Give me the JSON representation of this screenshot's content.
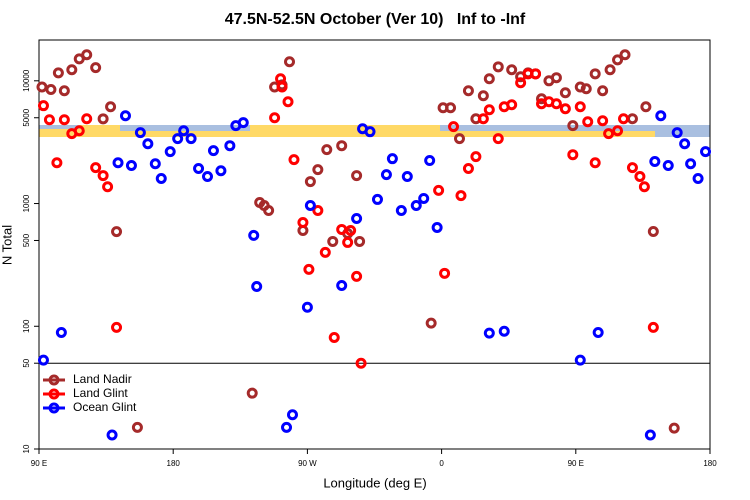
{
  "chart_data": {
    "type": "scatter",
    "title": "47.5N-52.5N October (Ver 10)   Inf to -Inf",
    "xlabel": "Longitude (deg E)",
    "ylabel": "N Total",
    "log_y": true,
    "legend": "bottomleft",
    "hline": 50,
    "xlim": [
      90,
      540
    ],
    "ylim": [
      10,
      21500
    ],
    "xticks": [
      {
        "value": 90,
        "label": "90 E"
      },
      180,
      {
        "value": 270,
        "label": "90 W"
      },
      {
        "value": 360,
        "label": "0"
      },
      {
        "value": 450,
        "label": "90 E"
      },
      {
        "value": 540,
        "label": "180"
      }
    ],
    "yticks": [
      10,
      50,
      100,
      500,
      1000,
      5000,
      10000
    ],
    "series": [
      {
        "name": "Land Nadir",
        "color": "#a52a2a",
        "x": [
          92,
          98,
          103,
          107,
          112,
          117,
          122,
          128,
          133,
          138,
          142,
          156,
          233,
          238,
          241,
          244,
          248,
          253,
          258,
          267,
          272,
          277,
          283,
          287,
          293,
          297,
          303,
          305,
          353,
          361,
          366,
          372,
          378,
          383,
          388,
          392,
          398,
          407,
          413,
          418,
          423,
          427,
          432,
          437,
          443,
          448,
          453,
          457,
          463,
          468,
          473,
          478,
          483,
          488,
          497,
          502,
          516
        ],
        "values": [
          8900,
          8500,
          11600,
          8300,
          12300,
          15100,
          16300,
          12800,
          4900,
          6150,
          590,
          15,
          28.5,
          1020,
          963,
          877,
          8900,
          9270,
          14300,
          603,
          1510,
          1890,
          2750,
          491,
          2960,
          570,
          1690,
          491,
          106,
          6030,
          6030,
          3380,
          8300,
          4910,
          7550,
          10400,
          13000,
          12300,
          10800,
          11600,
          11400,
          7140,
          10000,
          10600,
          7990,
          4310,
          8900,
          8610,
          11400,
          8300,
          12300,
          14800,
          16300,
          4910,
          6150,
          592,
          14.8
        ]
      },
      {
        "name": "Land Glint",
        "color": "#ff0000",
        "x": [
          93,
          97,
          102,
          107,
          112,
          117,
          122,
          128,
          133,
          136,
          142,
          248,
          252,
          253,
          257,
          261,
          267,
          271,
          277,
          282,
          288,
          293,
          297,
          299,
          303,
          306,
          358,
          362,
          368,
          373,
          378,
          383,
          388,
          392,
          398,
          402,
          407,
          413,
          418,
          423,
          427,
          432,
          437,
          443,
          448,
          453,
          458,
          463,
          468,
          472,
          478,
          482,
          488,
          493,
          496,
          502
        ],
        "values": [
          6270,
          4820,
          2150,
          4820,
          3710,
          3920,
          4910,
          1960,
          1690,
          1370,
          98,
          5000,
          10400,
          8900,
          6750,
          2280,
          701,
          291,
          877,
          400,
          81,
          615,
          482,
          603,
          255,
          50,
          1280,
          270,
          4230,
          1160,
          1930,
          2410,
          4910,
          5810,
          3380,
          6150,
          6380,
          9640,
          11400,
          11400,
          6500,
          6750,
          6500,
          5920,
          2500,
          6150,
          4640,
          2150,
          4730,
          3710,
          3920,
          4910,
          1960,
          1660,
          1370,
          98
        ]
      },
      {
        "name": "Ocean Glint",
        "color": "#0000ff",
        "x": [
          93,
          105,
          139,
          143,
          148,
          152,
          158,
          163,
          168,
          172,
          178,
          183,
          187,
          192,
          197,
          203,
          207,
          212,
          218,
          222,
          227,
          234,
          236,
          256,
          260,
          270,
          272,
          293,
          303,
          307,
          312,
          317,
          323,
          327,
          333,
          337,
          343,
          348,
          352,
          357,
          392,
          402,
          453,
          465,
          500,
          503,
          507,
          512,
          518,
          523,
          527,
          532,
          537
        ],
        "values": [
          53,
          89,
          13,
          2150,
          5190,
          2040,
          3780,
          3070,
          2110,
          1600,
          2650,
          3380,
          3920,
          3380,
          1930,
          1660,
          2700,
          1850,
          2960,
          4310,
          4560,
          550,
          211,
          15,
          19,
          143,
          963,
          215,
          755,
          4070,
          3850,
          1080,
          1720,
          2320,
          877,
          1660,
          963,
          1100,
          2240,
          638,
          88,
          91,
          53,
          89,
          13,
          2200,
          5190,
          2040,
          3780,
          3070,
          2110,
          1600,
          2650
        ]
      }
    ]
  }
}
